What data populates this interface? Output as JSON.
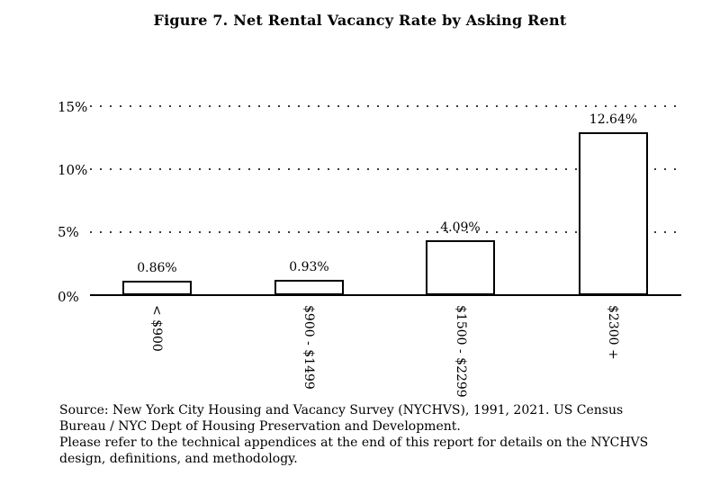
{
  "title": "Figure 7. Net Rental Vacancy Rate by Asking Rent",
  "chart_data": {
    "type": "bar",
    "title": "Figure 7. Net Rental Vacancy Rate by Asking Rent",
    "categories": [
      "< $900",
      "$900 - $1499",
      "$1500 - $2299",
      "$2300 +"
    ],
    "values": [
      0.86,
      0.93,
      4.09,
      12.64
    ],
    "value_labels": [
      "0.86%",
      "0.93%",
      "4.09%",
      "12.64%"
    ],
    "xlabel": "",
    "ylabel": "",
    "ytick_labels": [
      "0%",
      "5%",
      "10%",
      "15%"
    ],
    "ylim": [
      0,
      16
    ],
    "gridlines": {
      "style": "dotted",
      "orientation": "horizontal",
      "at": [
        5,
        10,
        15
      ]
    },
    "legend": "none",
    "bar_fill_color": "#ffffff",
    "bar_border_color": "#000000",
    "text_color": "#000000",
    "background_color": "#ffffff"
  },
  "footer": {
    "lines": [
      "Source: New York City Housing and Vacancy Survey (NYCHVS), 1991, 2021. US Census",
      "Bureau / NYC Dept of Housing Preservation and Development.",
      "Please refer to the technical appendices at the end of this report for details on the NYCHVS",
      "design, definitions, and methodology."
    ]
  }
}
